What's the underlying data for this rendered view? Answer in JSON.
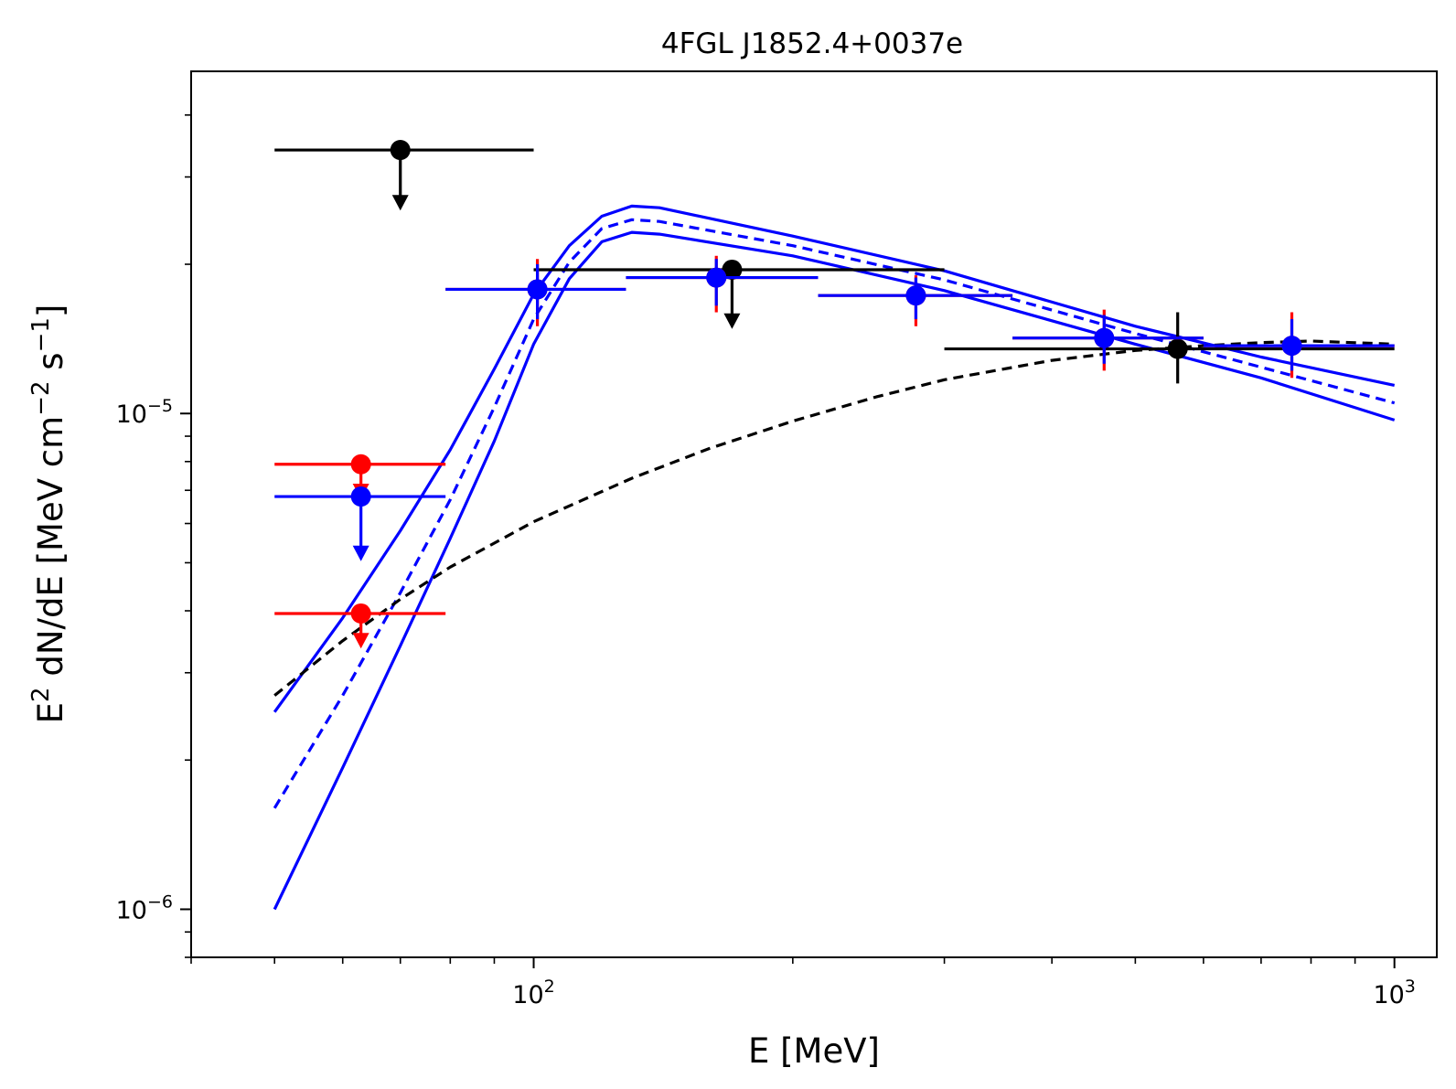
{
  "chart_data": {
    "type": "scatter",
    "title": "4FGL J1852.4+0037e",
    "xlabel": "E [MeV]",
    "ylabel_parts": [
      "E",
      "2",
      " dN/dE [MeV cm",
      "−2",
      " s",
      "−1",
      "]"
    ],
    "xscale": "log",
    "yscale": "log",
    "xlim": [
      40,
      1120
    ],
    "ylim": [
      8e-07,
      4.9e-05
    ],
    "x_ticks": [
      {
        "value": 100,
        "base": "10",
        "exp": "2"
      },
      {
        "value": 1000,
        "base": "10",
        "exp": "3"
      }
    ],
    "y_ticks": [
      {
        "value": 1e-06,
        "base": "10",
        "exp": "−6"
      },
      {
        "value": 1e-05,
        "base": "10",
        "exp": "−5"
      }
    ],
    "colors": {
      "red": "#ff0000",
      "blue": "#0000ff",
      "black": "#000000"
    },
    "lines": [
      {
        "name": "model-upper-band",
        "color": "#0000ff",
        "dash": false,
        "x": [
          50,
          60,
          70,
          80,
          90,
          100,
          110,
          120,
          130,
          140,
          200,
          300,
          500,
          700,
          1000
        ],
        "y": [
          2.5e-06,
          3.87e-06,
          5.8e-06,
          8.45e-06,
          1.23e-05,
          1.74e-05,
          2.18e-05,
          2.5e-05,
          2.62e-05,
          2.6e-05,
          2.28e-05,
          1.94e-05,
          1.5e-05,
          1.3e-05,
          1.14e-05
        ]
      },
      {
        "name": "model-best-fit",
        "color": "#0000ff",
        "dash": true,
        "x": [
          50,
          60,
          70,
          80,
          90,
          100,
          110,
          120,
          130,
          140,
          200,
          300,
          500,
          700,
          1000
        ],
        "y": [
          1.6e-06,
          2.7e-06,
          4.35e-06,
          6.7e-06,
          1.03e-05,
          1.55e-05,
          2.02e-05,
          2.36e-05,
          2.46e-05,
          2.44e-05,
          2.18e-05,
          1.86e-05,
          1.45e-05,
          1.24e-05,
          1.05e-05
        ]
      },
      {
        "name": "model-lower-band",
        "color": "#0000ff",
        "dash": false,
        "x": [
          50,
          60,
          70,
          80,
          90,
          100,
          110,
          120,
          130,
          140,
          200,
          300,
          500,
          700,
          1000
        ],
        "y": [
          1e-06,
          1.93e-06,
          3.4e-06,
          5.6e-06,
          8.8e-06,
          1.38e-05,
          1.87e-05,
          2.22e-05,
          2.32e-05,
          2.3e-05,
          2.08e-05,
          1.77e-05,
          1.38e-05,
          1.18e-05,
          9.7e-06
        ]
      },
      {
        "name": "black-dashed-model",
        "color": "#000000",
        "dash": true,
        "x": [
          50,
          60,
          70,
          80,
          100,
          130,
          160,
          200,
          250,
          300,
          400,
          500,
          600,
          700,
          800,
          1000
        ],
        "y": [
          2.7e-06,
          3.48e-06,
          4.22e-06,
          4.9e-06,
          6.05e-06,
          7.4e-06,
          8.5e-06,
          9.65e-06,
          1.08e-05,
          1.17e-05,
          1.28e-05,
          1.34e-05,
          1.37e-05,
          1.39e-05,
          1.4e-05,
          1.38e-05
        ]
      }
    ],
    "points": [
      {
        "series": "black",
        "color": "#000000",
        "x": 70,
        "y": 3.4e-05,
        "xerr": [
          50,
          100
        ],
        "upper_limit": true,
        "arrow_to": 2.6e-05
      },
      {
        "series": "black",
        "color": "#000000",
        "x": 170,
        "y": 1.95e-05,
        "xerr": [
          100,
          300
        ],
        "upper_limit": true,
        "arrow_to": 1.5e-05
      },
      {
        "series": "black",
        "color": "#000000",
        "x": 560,
        "y": 1.35e-05,
        "yerr": [
          1.15e-05,
          1.6e-05
        ],
        "xerr": [
          300,
          1000
        ],
        "upper_limit": false
      },
      {
        "series": "red",
        "color": "#ff0000",
        "x": 63,
        "y": 7.9e-06,
        "xerr": [
          50,
          79
        ],
        "upper_limit": true,
        "arrow_to": 6.8e-06
      },
      {
        "series": "red",
        "color": "#ff0000",
        "x": 63,
        "y": 3.95e-06,
        "xerr": [
          50,
          79
        ],
        "upper_limit": true,
        "arrow_to": 3.4e-06
      },
      {
        "series": "red",
        "color": "#ff0000",
        "x": 101,
        "y": 1.78e-05,
        "yerr": [
          1.5e-05,
          2.05e-05
        ],
        "xerr": [
          79,
          128
        ],
        "upper_limit": false
      },
      {
        "series": "red",
        "color": "#ff0000",
        "x": 163,
        "y": 1.88e-05,
        "yerr": [
          1.6e-05,
          2.08e-05
        ],
        "xerr": [
          128,
          214
        ],
        "upper_limit": false
      },
      {
        "series": "red",
        "color": "#ff0000",
        "x": 278,
        "y": 1.73e-05,
        "yerr": [
          1.5e-05,
          1.9e-05
        ],
        "xerr": [
          214,
          360
        ],
        "upper_limit": false
      },
      {
        "series": "red",
        "color": "#ff0000",
        "x": 460,
        "y": 1.42e-05,
        "yerr": [
          1.22e-05,
          1.62e-05
        ],
        "xerr": [
          360,
          600
        ],
        "upper_limit": false
      },
      {
        "series": "red",
        "color": "#ff0000",
        "x": 760,
        "y": 1.37e-05,
        "yerr": [
          1.18e-05,
          1.6e-05
        ],
        "xerr": [
          600,
          1000
        ],
        "upper_limit": false
      },
      {
        "series": "blue",
        "color": "#0000ff",
        "x": 63,
        "y": 6.8e-06,
        "xerr": [
          50,
          79
        ],
        "upper_limit": true,
        "arrow_to": 5.1e-06
      },
      {
        "series": "blue",
        "color": "#0000ff",
        "x": 101,
        "y": 1.78e-05,
        "yerr": [
          1.55e-05,
          2e-05
        ],
        "xerr": [
          79,
          128
        ],
        "upper_limit": false
      },
      {
        "series": "blue",
        "color": "#0000ff",
        "x": 163,
        "y": 1.88e-05,
        "yerr": [
          1.65e-05,
          2.05e-05
        ],
        "xerr": [
          128,
          214
        ],
        "upper_limit": false
      },
      {
        "series": "blue",
        "color": "#0000ff",
        "x": 278,
        "y": 1.73e-05,
        "yerr": [
          1.55e-05,
          1.88e-05
        ],
        "xerr": [
          214,
          360
        ],
        "upper_limit": false
      },
      {
        "series": "blue",
        "color": "#0000ff",
        "x": 460,
        "y": 1.42e-05,
        "yerr": [
          1.26e-05,
          1.58e-05
        ],
        "xerr": [
          360,
          600
        ],
        "upper_limit": false
      },
      {
        "series": "blue",
        "color": "#0000ff",
        "x": 760,
        "y": 1.37e-05,
        "yerr": [
          1.22e-05,
          1.55e-05
        ],
        "xerr": [
          600,
          1000
        ],
        "upper_limit": false
      }
    ]
  }
}
